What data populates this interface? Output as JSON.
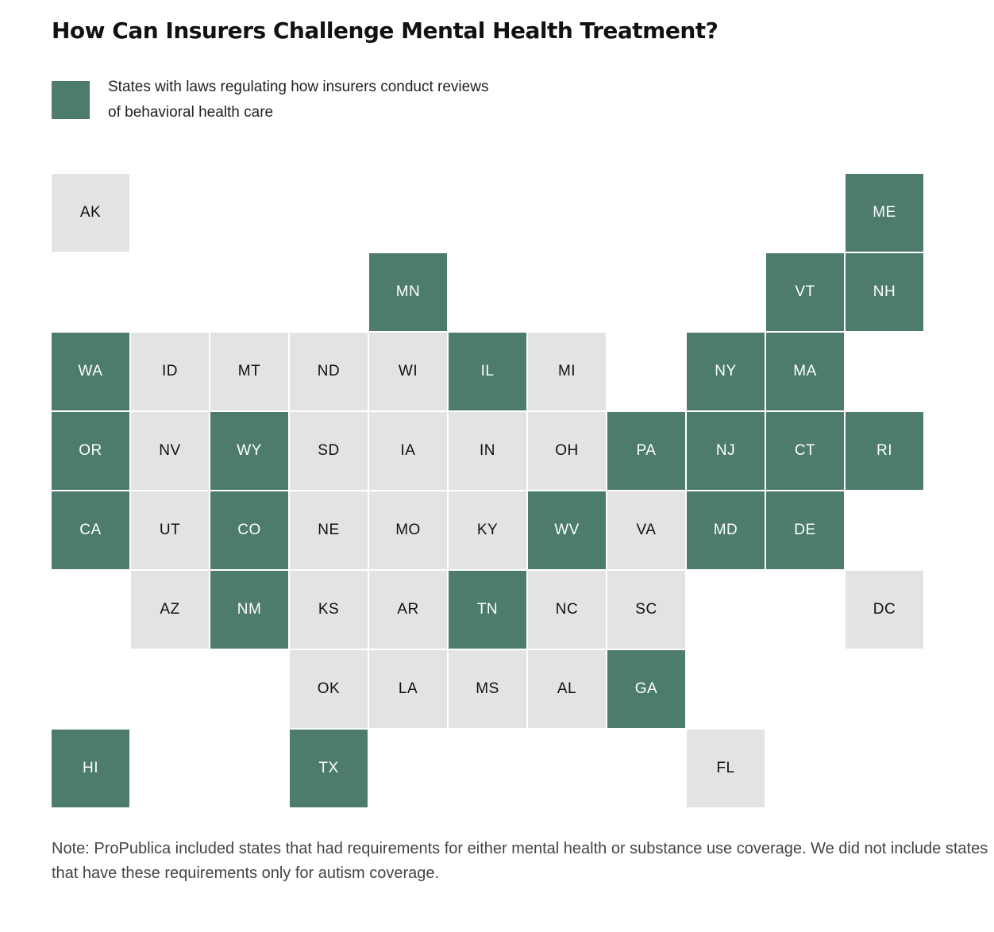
{
  "title": "How Can Insurers Challenge Mental Health Treatment?",
  "legend": {
    "text": "States with laws regulating how insurers conduct reviews of behavioral health care",
    "color": "#4d7c6f"
  },
  "colors": {
    "yes": "#4d7c6f",
    "no": "#e3e3e3"
  },
  "states": [
    {
      "abbr": "AK",
      "row": 0,
      "col": 0,
      "has_law": false
    },
    {
      "abbr": "ME",
      "row": 0,
      "col": 10,
      "has_law": true
    },
    {
      "abbr": "MN",
      "row": 1,
      "col": 4,
      "has_law": true
    },
    {
      "abbr": "VT",
      "row": 1,
      "col": 9,
      "has_law": true
    },
    {
      "abbr": "NH",
      "row": 1,
      "col": 10,
      "has_law": true
    },
    {
      "abbr": "WA",
      "row": 2,
      "col": 0,
      "has_law": true
    },
    {
      "abbr": "ID",
      "row": 2,
      "col": 1,
      "has_law": false
    },
    {
      "abbr": "MT",
      "row": 2,
      "col": 2,
      "has_law": false
    },
    {
      "abbr": "ND",
      "row": 2,
      "col": 3,
      "has_law": false
    },
    {
      "abbr": "WI",
      "row": 2,
      "col": 4,
      "has_law": false
    },
    {
      "abbr": "IL",
      "row": 2,
      "col": 5,
      "has_law": true
    },
    {
      "abbr": "MI",
      "row": 2,
      "col": 6,
      "has_law": false
    },
    {
      "abbr": "NY",
      "row": 2,
      "col": 8,
      "has_law": true
    },
    {
      "abbr": "MA",
      "row": 2,
      "col": 9,
      "has_law": true
    },
    {
      "abbr": "OR",
      "row": 3,
      "col": 0,
      "has_law": true
    },
    {
      "abbr": "NV",
      "row": 3,
      "col": 1,
      "has_law": false
    },
    {
      "abbr": "WY",
      "row": 3,
      "col": 2,
      "has_law": true
    },
    {
      "abbr": "SD",
      "row": 3,
      "col": 3,
      "has_law": false
    },
    {
      "abbr": "IA",
      "row": 3,
      "col": 4,
      "has_law": false
    },
    {
      "abbr": "IN",
      "row": 3,
      "col": 5,
      "has_law": false
    },
    {
      "abbr": "OH",
      "row": 3,
      "col": 6,
      "has_law": false
    },
    {
      "abbr": "PA",
      "row": 3,
      "col": 7,
      "has_law": true
    },
    {
      "abbr": "NJ",
      "row": 3,
      "col": 8,
      "has_law": true
    },
    {
      "abbr": "CT",
      "row": 3,
      "col": 9,
      "has_law": true
    },
    {
      "abbr": "RI",
      "row": 3,
      "col": 10,
      "has_law": true
    },
    {
      "abbr": "CA",
      "row": 4,
      "col": 0,
      "has_law": true
    },
    {
      "abbr": "UT",
      "row": 4,
      "col": 1,
      "has_law": false
    },
    {
      "abbr": "CO",
      "row": 4,
      "col": 2,
      "has_law": true
    },
    {
      "abbr": "NE",
      "row": 4,
      "col": 3,
      "has_law": false
    },
    {
      "abbr": "MO",
      "row": 4,
      "col": 4,
      "has_law": false
    },
    {
      "abbr": "KY",
      "row": 4,
      "col": 5,
      "has_law": false
    },
    {
      "abbr": "WV",
      "row": 4,
      "col": 6,
      "has_law": true
    },
    {
      "abbr": "VA",
      "row": 4,
      "col": 7,
      "has_law": false
    },
    {
      "abbr": "MD",
      "row": 4,
      "col": 8,
      "has_law": true
    },
    {
      "abbr": "DE",
      "row": 4,
      "col": 9,
      "has_law": true
    },
    {
      "abbr": "AZ",
      "row": 5,
      "col": 1,
      "has_law": false
    },
    {
      "abbr": "NM",
      "row": 5,
      "col": 2,
      "has_law": true
    },
    {
      "abbr": "KS",
      "row": 5,
      "col": 3,
      "has_law": false
    },
    {
      "abbr": "AR",
      "row": 5,
      "col": 4,
      "has_law": false
    },
    {
      "abbr": "TN",
      "row": 5,
      "col": 5,
      "has_law": true
    },
    {
      "abbr": "NC",
      "row": 5,
      "col": 6,
      "has_law": false
    },
    {
      "abbr": "SC",
      "row": 5,
      "col": 7,
      "has_law": false
    },
    {
      "abbr": "DC",
      "row": 5,
      "col": 10,
      "has_law": false
    },
    {
      "abbr": "OK",
      "row": 6,
      "col": 3,
      "has_law": false
    },
    {
      "abbr": "LA",
      "row": 6,
      "col": 4,
      "has_law": false
    },
    {
      "abbr": "MS",
      "row": 6,
      "col": 5,
      "has_law": false
    },
    {
      "abbr": "AL",
      "row": 6,
      "col": 6,
      "has_law": false
    },
    {
      "abbr": "GA",
      "row": 6,
      "col": 7,
      "has_law": true
    },
    {
      "abbr": "HI",
      "row": 7,
      "col": 0,
      "has_law": true
    },
    {
      "abbr": "TX",
      "row": 7,
      "col": 3,
      "has_law": true
    },
    {
      "abbr": "FL",
      "row": 7,
      "col": 8,
      "has_law": false
    }
  ],
  "note": "Note: ProPublica included states that had requirements for either mental health or substance use coverage. We did not include states that have these requirements only for autism coverage."
}
